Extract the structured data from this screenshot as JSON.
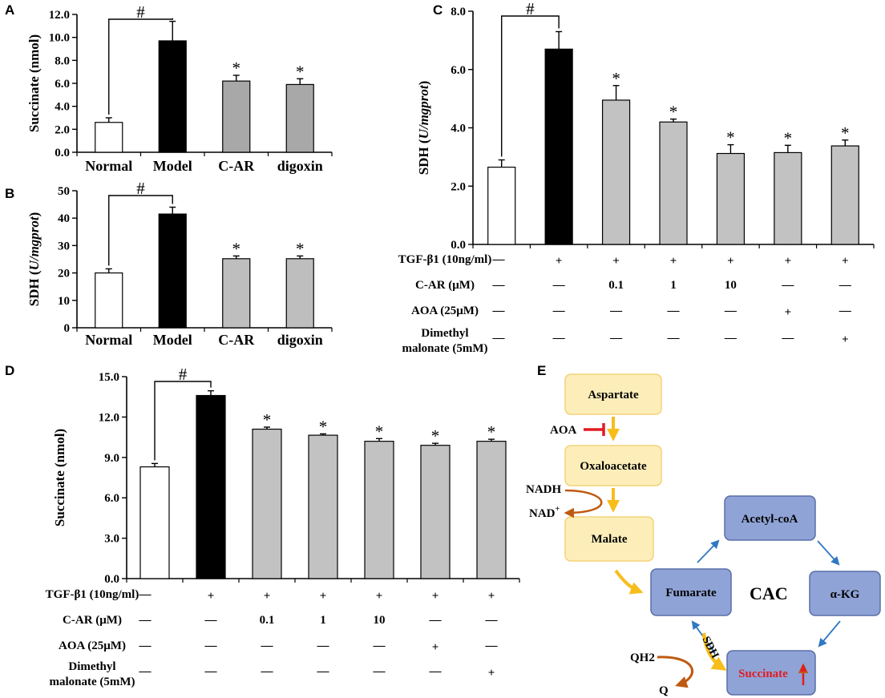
{
  "chart_data": [
    {
      "panel": "A",
      "type": "bar",
      "ylabel": "Succinate (nmol)",
      "ylim": [
        0,
        12
      ],
      "yticks": [
        "0.0",
        "2.0",
        "4.0",
        "6.0",
        "8.0",
        "10.0",
        "12.0"
      ],
      "categories": [
        "Normal",
        "Model",
        "C-AR",
        "digoxin"
      ],
      "values": [
        2.6,
        9.7,
        6.2,
        5.9
      ],
      "errors": [
        0.4,
        1.7,
        0.5,
        0.5
      ],
      "significance": [
        "",
        "#",
        "*",
        "*"
      ]
    },
    {
      "panel": "B",
      "type": "bar",
      "ylabel_main": "SDH (",
      "ylabel_unit": "U/mgprot",
      "ylabel_close": ")",
      "ylim": [
        0,
        50
      ],
      "yticks": [
        "0",
        "10",
        "20",
        "30",
        "40",
        "50"
      ],
      "categories": [
        "Normal",
        "Model",
        "C-AR",
        "digoxin"
      ],
      "values": [
        20,
        41.5,
        25.2,
        25.2
      ],
      "errors": [
        1.5,
        2.5,
        1.0,
        1.0
      ],
      "significance": [
        "",
        "#",
        "*",
        "*"
      ]
    },
    {
      "panel": "C",
      "type": "bar",
      "ylabel_main": "SDH (",
      "ylabel_unit": "U/mgprot",
      "ylabel_close": ")",
      "ylim": [
        0,
        8
      ],
      "yticks": [
        "0.0",
        "2.0",
        "4.0",
        "6.0",
        "8.0"
      ],
      "values": [
        2.65,
        6.7,
        4.95,
        4.2,
        3.12,
        3.15,
        3.38
      ],
      "errors": [
        0.25,
        0.6,
        0.5,
        0.1,
        0.3,
        0.25,
        0.2
      ],
      "significance": [
        "",
        "#",
        "*",
        "*",
        "*",
        "*",
        "*"
      ],
      "treatment_rows": [
        {
          "label": "TGF-β1 (10ng/ml)",
          "cells": [
            "—",
            "+",
            "+",
            "+",
            "+",
            "+",
            "+"
          ]
        },
        {
          "label": "C-AR (μM)",
          "cells": [
            "—",
            "—",
            "0.1",
            "1",
            "10",
            "—",
            "—"
          ]
        },
        {
          "label": "AOA (25μM)",
          "cells": [
            "—",
            "—",
            "—",
            "—",
            "—",
            "+",
            "—"
          ]
        },
        {
          "label": "Dimethyl",
          "label2": "malonate (5mM)",
          "cells": [
            "—",
            "—",
            "—",
            "—",
            "—",
            "—",
            "+"
          ]
        }
      ]
    },
    {
      "panel": "D",
      "type": "bar",
      "ylabel": "Succinate (nmol)",
      "ylim": [
        0,
        15
      ],
      "yticks": [
        "0.0",
        "3.0",
        "6.0",
        "9.0",
        "12.0",
        "15.0"
      ],
      "values": [
        8.3,
        13.6,
        11.1,
        10.65,
        10.2,
        9.9,
        10.2
      ],
      "errors": [
        0.25,
        0.35,
        0.15,
        0.1,
        0.2,
        0.15,
        0.15
      ],
      "significance": [
        "",
        "#",
        "*",
        "*",
        "*",
        "*",
        "*"
      ],
      "treatment_rows": [
        {
          "label": "TGF-β1 (10ng/ml)",
          "cells": [
            "—",
            "+",
            "+",
            "+",
            "+",
            "+",
            "+"
          ]
        },
        {
          "label": "C-AR (μM)",
          "cells": [
            "—",
            "—",
            "0.1",
            "1",
            "10",
            "—",
            "—"
          ]
        },
        {
          "label": "AOA (25μM)",
          "cells": [
            "—",
            "—",
            "—",
            "—",
            "—",
            "+",
            "—"
          ]
        },
        {
          "label": "Dimethyl",
          "label2": "malonate (5mM)",
          "cells": [
            "—",
            "—",
            "—",
            "—",
            "—",
            "—",
            "+"
          ]
        }
      ]
    }
  ],
  "panel_labels": {
    "a": "A",
    "b": "B",
    "c": "C",
    "d": "D",
    "e": "E"
  },
  "pathway": {
    "aspartate": "Aspartate",
    "oxaloacetate": "Oxaloacetate",
    "malate": "Malate",
    "aoa": "AOA",
    "nadh": "NADH",
    "nad": "NAD",
    "nad_sup": "+",
    "acetyl_coa": "Acetyl-coA",
    "akg": "α-KG",
    "fumarate": "Fumarate",
    "succinate": "Succinate",
    "cac": "CAC",
    "sdh": "SDH",
    "qh2": "QH2",
    "q": "Q",
    "colors": {
      "yellow_fill": "#fdeeb9",
      "yellow_stroke": "#f3d27a",
      "blue_fill": "#8fa3d6",
      "blue_stroke": "#5a6fa8",
      "arrow_yellow": "#f7bd1b",
      "arrow_blue": "#2f78c4",
      "arrow_brown": "#bf5a12",
      "red": "#e31b23"
    }
  }
}
